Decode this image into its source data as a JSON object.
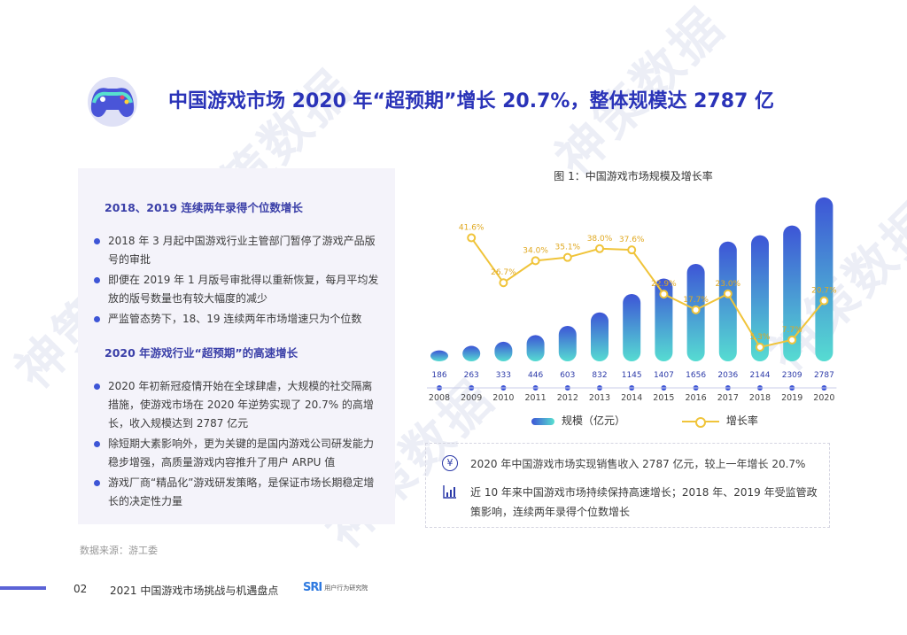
{
  "header": {
    "title": "中国游戏市场 2020 年“超预期”增长 20.7%，整体规模达 2787 亿"
  },
  "left_panel": {
    "section1": {
      "title": "2018、2019 连续两年录得个位数增长",
      "bullets": [
        "2018 年 3 月起中国游戏行业主管部门暂停了游戏产品版号的审批",
        "即便在 2019 年 1 月版号审批得以重新恢复，每月平均发放的版号数量也有较大幅度的减少",
        "严监管态势下，18、19 连续两年市场增速只为个位数"
      ]
    },
    "section2": {
      "title": "2020 年游戏行业“超预期”的高速增长",
      "bullets": [
        "2020 年初新冠疫情开始在全球肆虐，大规模的社交隔离措施，使游戏市场在 2020 年逆势实现了 20.7% 的高增长，收入规模达到 2787 亿元",
        "除短期大素影响外，更为关键的是国内游戏公司研发能力稳步增强，高质量游戏内容推升了用户 ARPU 值",
        "游戏厂商“精品化”游戏研发策略，是保证市场长期稳定增长的决定性力量"
      ]
    },
    "source": "数据来源：游工委"
  },
  "chart_data": {
    "type": "bar",
    "title": "图 1：中国游戏市场规模及增长率",
    "categories": [
      "2008",
      "2009",
      "2010",
      "2011",
      "2012",
      "2013",
      "2014",
      "2015",
      "2016",
      "2017",
      "2018",
      "2019",
      "2020"
    ],
    "series": [
      {
        "name": "规模（亿元）",
        "type": "bar",
        "values": [
          186,
          263,
          333,
          446,
          603,
          832,
          1145,
          1407,
          1656,
          2036,
          2144,
          2309,
          2787
        ]
      },
      {
        "name": "增长率",
        "type": "line",
        "values": [
          null,
          41.6,
          26.7,
          34.0,
          35.1,
          38.0,
          37.6,
          22.9,
          17.7,
          23.0,
          5.3,
          7.7,
          20.7
        ]
      }
    ],
    "growth_labels": [
      "",
      "41.6%",
      "26.7%",
      "34.0%",
      "35.1%",
      "38.0%",
      "37.6%",
      "22.9%",
      "17.7%",
      "23.0%",
      "5.3%",
      "7.7%",
      "20.7%"
    ],
    "ylim": [
      0,
      2800
    ],
    "growth_ylim": [
      0,
      50
    ],
    "legend_position": "bottom",
    "colors": {
      "bar_top": "#3d55d6",
      "bar_bottom": "#56dcd2",
      "line": "#f0c43a",
      "value_text": "#2c3aa8"
    }
  },
  "notes": [
    {
      "icon": "yen-icon",
      "glyph": "¥",
      "text": "2020 年中国游戏市场实现销售收入 2787 亿元，较上一年增长 20.7%"
    },
    {
      "icon": "growth-chart-icon",
      "glyph": "📈",
      "text": "近 10 年来中国游戏市场持续保持高速增长；2018 年、2019 年受监管政策影响，连续两年录得个位数增长"
    }
  ],
  "footer": {
    "page": "02",
    "title": "2021 中国游戏市场挑战与机遇盘点",
    "logo_mark": "SRI",
    "logo_text": "用户行为研究院"
  },
  "watermark": "神策数据"
}
